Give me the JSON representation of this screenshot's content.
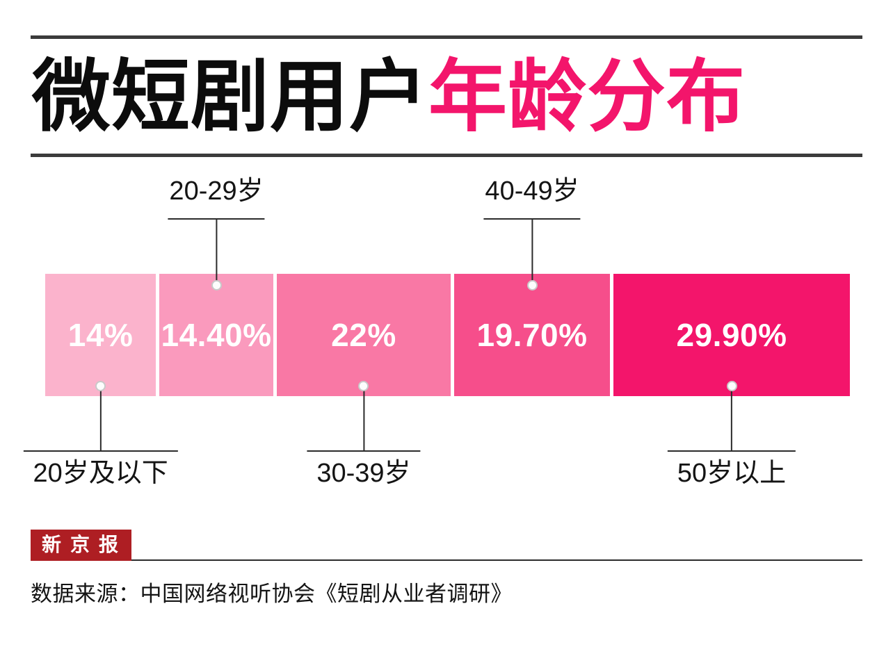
{
  "header": {
    "title_black": "微短剧用户",
    "title_pink": "年龄分布",
    "accent_color": "#F3156B",
    "rule_color": "#3b3b3b"
  },
  "chart_data": {
    "type": "bar",
    "variant": "horizontal-stacked-percentage",
    "title": "微短剧用户年龄分布",
    "categories": [
      "20岁及以下",
      "20-29岁",
      "30-39岁",
      "40-49岁",
      "50岁以上"
    ],
    "values": [
      14,
      14.4,
      22,
      19.7,
      29.9
    ],
    "value_labels": [
      "14%",
      "14.40%",
      "22%",
      "19.70%",
      "29.90%"
    ],
    "segment_colors": [
      "#FBB3CC",
      "#FA9ABD",
      "#F978A5",
      "#F64E8B",
      "#F3156B"
    ],
    "category_label_side": [
      "bottom",
      "top",
      "bottom",
      "top",
      "bottom"
    ],
    "total": 100,
    "xlim": [
      0,
      100
    ],
    "legend": "none",
    "grid": false,
    "value_label_color": "#ffffff",
    "callout_line_color": "#2b2b2b",
    "callout_dot_color": "#fdfdfd"
  },
  "footer": {
    "logo_text": "新 京 报",
    "logo_bg": "#AE1E23",
    "logo_text_color": "#ffffff",
    "source_text": "数据来源：中国网络视听协会《短剧从业者调研》"
  }
}
